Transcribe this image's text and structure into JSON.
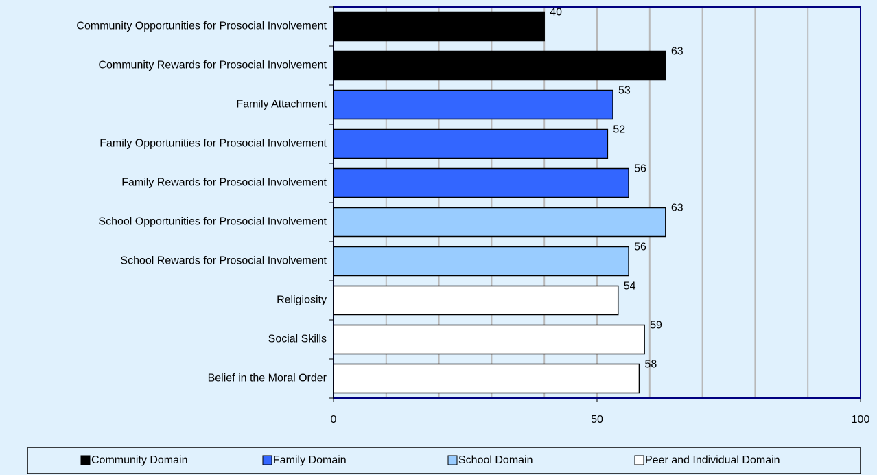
{
  "chart_data": {
    "type": "barh",
    "categories": [
      "Community Opportunities for Prosocial Involvement",
      "Community Rewards for Prosocial Involvement",
      "Family Attachment",
      "Family Opportunities for Prosocial Involvement",
      "Family Rewards for Prosocial Involvement",
      "School Opportunities for Prosocial Involvement",
      "School Rewards for Prosocial Involvement",
      "Religiosity",
      "Social Skills",
      "Belief in the Moral Order"
    ],
    "series": [
      {
        "name": "Community Domain",
        "color": "#000000",
        "values": [
          40,
          63,
          null,
          null,
          null,
          null,
          null,
          null,
          null,
          null
        ]
      },
      {
        "name": "Family Domain",
        "color": "#3366ff",
        "values": [
          null,
          null,
          53,
          52,
          56,
          null,
          null,
          null,
          null,
          null
        ]
      },
      {
        "name": "School Domain",
        "color": "#99ccff",
        "values": [
          null,
          null,
          null,
          null,
          null,
          63,
          56,
          null,
          null,
          null
        ]
      },
      {
        "name": "Peer and Individual Domain",
        "color": "#ffffff",
        "values": [
          null,
          null,
          null,
          null,
          null,
          null,
          null,
          54,
          59,
          58
        ]
      }
    ],
    "xlim": [
      0,
      100
    ],
    "xticks": [
      0,
      50,
      100
    ],
    "minor_xticks": [
      10,
      20,
      30,
      40,
      60,
      70,
      80,
      90
    ],
    "grid": true,
    "legend": "bottom"
  }
}
